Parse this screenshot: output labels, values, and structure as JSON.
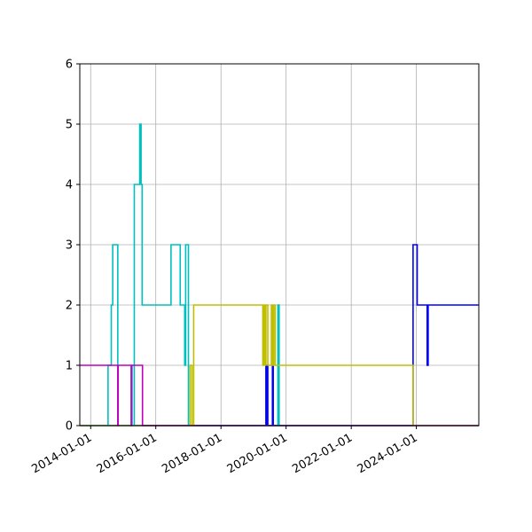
{
  "chart_data": {
    "type": "line",
    "drawstyle": "steps-post",
    "title": "",
    "xlabel": "",
    "ylabel": "",
    "x_axis": "date",
    "xlim": [
      "2013-09-01",
      "2025-12-01"
    ],
    "ylim": [
      0,
      6
    ],
    "grid": true,
    "legend": "none",
    "x_ticks": [
      "2014-01-01",
      "2016-01-01",
      "2018-01-01",
      "2020-01-01",
      "2022-01-01",
      "2024-01-01"
    ],
    "y_ticks": [
      "0",
      "1",
      "2",
      "3",
      "4",
      "5",
      "6"
    ],
    "series": [
      {
        "color": "#0000ff",
        "x": [
          "2013-09-01",
          "2019-05-20",
          "2019-05-28",
          "2019-06-01",
          "2019-06-10",
          "2019-08-01",
          "2019-08-10",
          "2023-11-25",
          "2023-12-01",
          "2024-01-10",
          "2024-05-01",
          "2024-05-12",
          "2025-12-01"
        ],
        "y": [
          0,
          1,
          0,
          1,
          0,
          1,
          0,
          3,
          3,
          2,
          1,
          2,
          2
        ]
      },
      {
        "color": "#00bfbf",
        "x": [
          "2013-09-01",
          "2014-07-15",
          "2014-08-20",
          "2014-09-05",
          "2014-10-15",
          "2014-11-01",
          "2015-04-01",
          "2015-04-10",
          "2015-05-05",
          "2015-07-05",
          "2015-07-20",
          "2015-08-01",
          "2016-06-20",
          "2016-09-01",
          "2016-10-01",
          "2016-11-20",
          "2016-12-01",
          "2017-01-01",
          "2017-01-15",
          "2017-02-15",
          "2017-03-01",
          "2019-10-01",
          "2019-10-15",
          "2025-12-01"
        ],
        "y": [
          0,
          1,
          2,
          3,
          3,
          0,
          1,
          0,
          4,
          5,
          4,
          2,
          3,
          3,
          2,
          1,
          3,
          0,
          0,
          0,
          0,
          2,
          0,
          0
        ]
      },
      {
        "color": "#bfbf00",
        "x": [
          "2013-09-01",
          "2017-01-20",
          "2017-02-10",
          "2017-03-01",
          "2019-04-15",
          "2019-04-20",
          "2019-04-25",
          "2019-05-01",
          "2019-05-05",
          "2019-05-10",
          "2019-05-15",
          "2019-05-20",
          "2019-05-28",
          "2019-06-10",
          "2019-07-20",
          "2019-08-01",
          "2019-08-15",
          "2019-09-01",
          "2023-11-25",
          "2025-12-01"
        ],
        "y": [
          0,
          1,
          0,
          2,
          1,
          2,
          1,
          2,
          1,
          2,
          1,
          2,
          2,
          1,
          2,
          1,
          2,
          1,
          0,
          0
        ]
      },
      {
        "color": "#bf00bf",
        "x": [
          "2013-09-01",
          "2014-11-01",
          "2014-11-05",
          "2015-04-01",
          "2015-04-05",
          "2015-08-01",
          "2015-08-05",
          "2025-12-01"
        ],
        "y": [
          1,
          0,
          1,
          0,
          1,
          1,
          0,
          0
        ]
      }
    ]
  }
}
